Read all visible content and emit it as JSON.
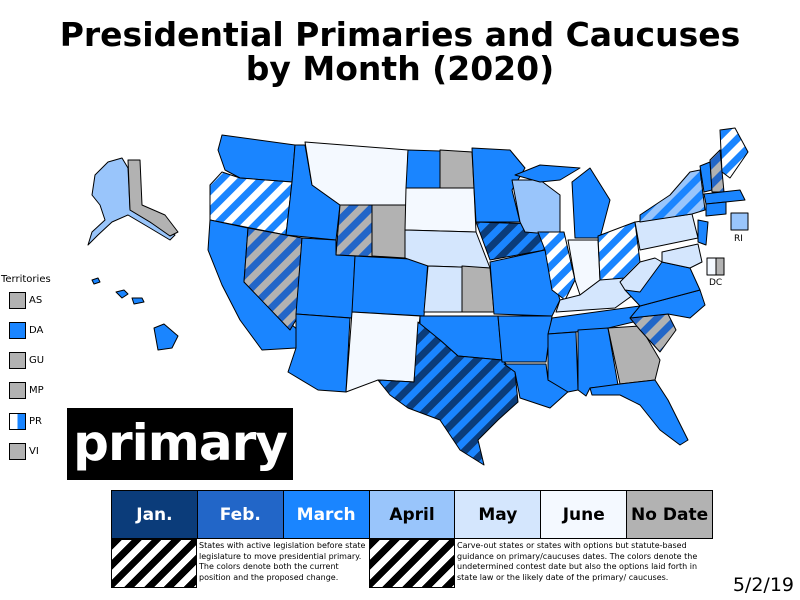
{
  "title_line1": "Presidential Primaries and Caucuses",
  "title_line2": "by Month (2020)",
  "big_label": "primary",
  "date_stamp": "5/2/19",
  "state_labels": {
    "ri": "RI",
    "dc": "DC"
  },
  "territories": {
    "heading": "Territories",
    "items": [
      {
        "code": "AS",
        "color": "#b2b2b2"
      },
      {
        "code": "DA",
        "color": "#1a85ff"
      },
      {
        "code": "GU",
        "color": "#b2b2b2"
      },
      {
        "code": "MP",
        "color": "#b2b2b2"
      },
      {
        "code": "PR",
        "color": "#1a85ff"
      },
      {
        "code": "VI",
        "color": "#b2b2b2"
      }
    ]
  },
  "legend": [
    {
      "label": "Jan.",
      "color": "#0b3c7a",
      "text_color": "#ffffff"
    },
    {
      "label": "Feb.",
      "color": "#2266c8",
      "text_color": "#ffffff"
    },
    {
      "label": "March",
      "color": "#1a85ff",
      "text_color": "#ffffff"
    },
    {
      "label": "April",
      "color": "#99c5fb",
      "text_color": "#000000"
    },
    {
      "label": "May",
      "color": "#d4e6fd",
      "text_color": "#000000"
    },
    {
      "label": "June",
      "color": "#f4f9ff",
      "text_color": "#000000"
    },
    {
      "label": "No Date",
      "color": "#b2b2b2",
      "text_color": "#000000"
    }
  ],
  "notes": {
    "legislation": "States with active legislation before state legislature to move presidential primary. The colors denote both the current position and the proposed change.",
    "carveout": "Carve-out states or states with options but statute-based guidance on primary/caucuses dates. The colors denote the undetermined contest date but also the options laid forth in state law or the likely date of the primary/ caucuses."
  },
  "colors": {
    "jan": "#0b3c7a",
    "feb": "#2266c8",
    "march": "#1a85ff",
    "april": "#99c5fb",
    "may": "#d4e6fd",
    "june": "#f4f9ff",
    "nodate": "#b2b2b2"
  }
}
